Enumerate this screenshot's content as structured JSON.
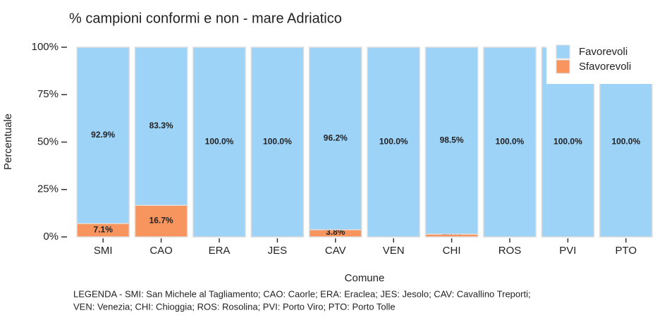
{
  "chart_data": {
    "type": "stacked_bar",
    "title": "% campioni conformi e non - mare Adriatico",
    "x_label": "Comune",
    "y_label": "Percentuale",
    "categories": [
      "SMI",
      "CAO",
      "ERA",
      "JES",
      "CAV",
      "VEN",
      "CHI",
      "ROS",
      "PVI",
      "PTO"
    ],
    "series": [
      {
        "name": "Sfavorevoli",
        "color": "#f8955f",
        "values": [
          7.1,
          16.7,
          0,
          0,
          3.8,
          0,
          1.5,
          0,
          0,
          0
        ],
        "value_labels": [
          "7.1%",
          "16.7%",
          null,
          null,
          "3.8%",
          null,
          "1.5%",
          null,
          null,
          null
        ]
      },
      {
        "name": "Favorevoli",
        "color": "#9ed3f8",
        "values": [
          92.9,
          83.3,
          100,
          100,
          96.2,
          100,
          98.5,
          100,
          100,
          100
        ],
        "value_labels": [
          "92.9%",
          "83.3%",
          "100.0%",
          "100.0%",
          "96.2%",
          "100.0%",
          "98.5%",
          "100.0%",
          "100.0%",
          "100.0%"
        ]
      }
    ],
    "ylim": [
      0,
      100
    ],
    "yticks": [
      {
        "value": 0,
        "label": "0%"
      },
      {
        "value": 25,
        "label": "25%"
      },
      {
        "value": 50,
        "label": "50%"
      },
      {
        "value": 75,
        "label": "75%"
      },
      {
        "value": 100,
        "label": "100%"
      }
    ],
    "legend": "top-right",
    "caption": [
      "LEGENDA - SMI: San Michele al Tagliamento; CAO: Caorle; ERA: Eraclea; JES: Jesolo; CAV: Cavallino Treporti;",
      "VEN: Venezia; CHI: Chioggia; ROS: Rosolina; PVI: Porto Viro; PTO: Porto Tolle"
    ]
  }
}
